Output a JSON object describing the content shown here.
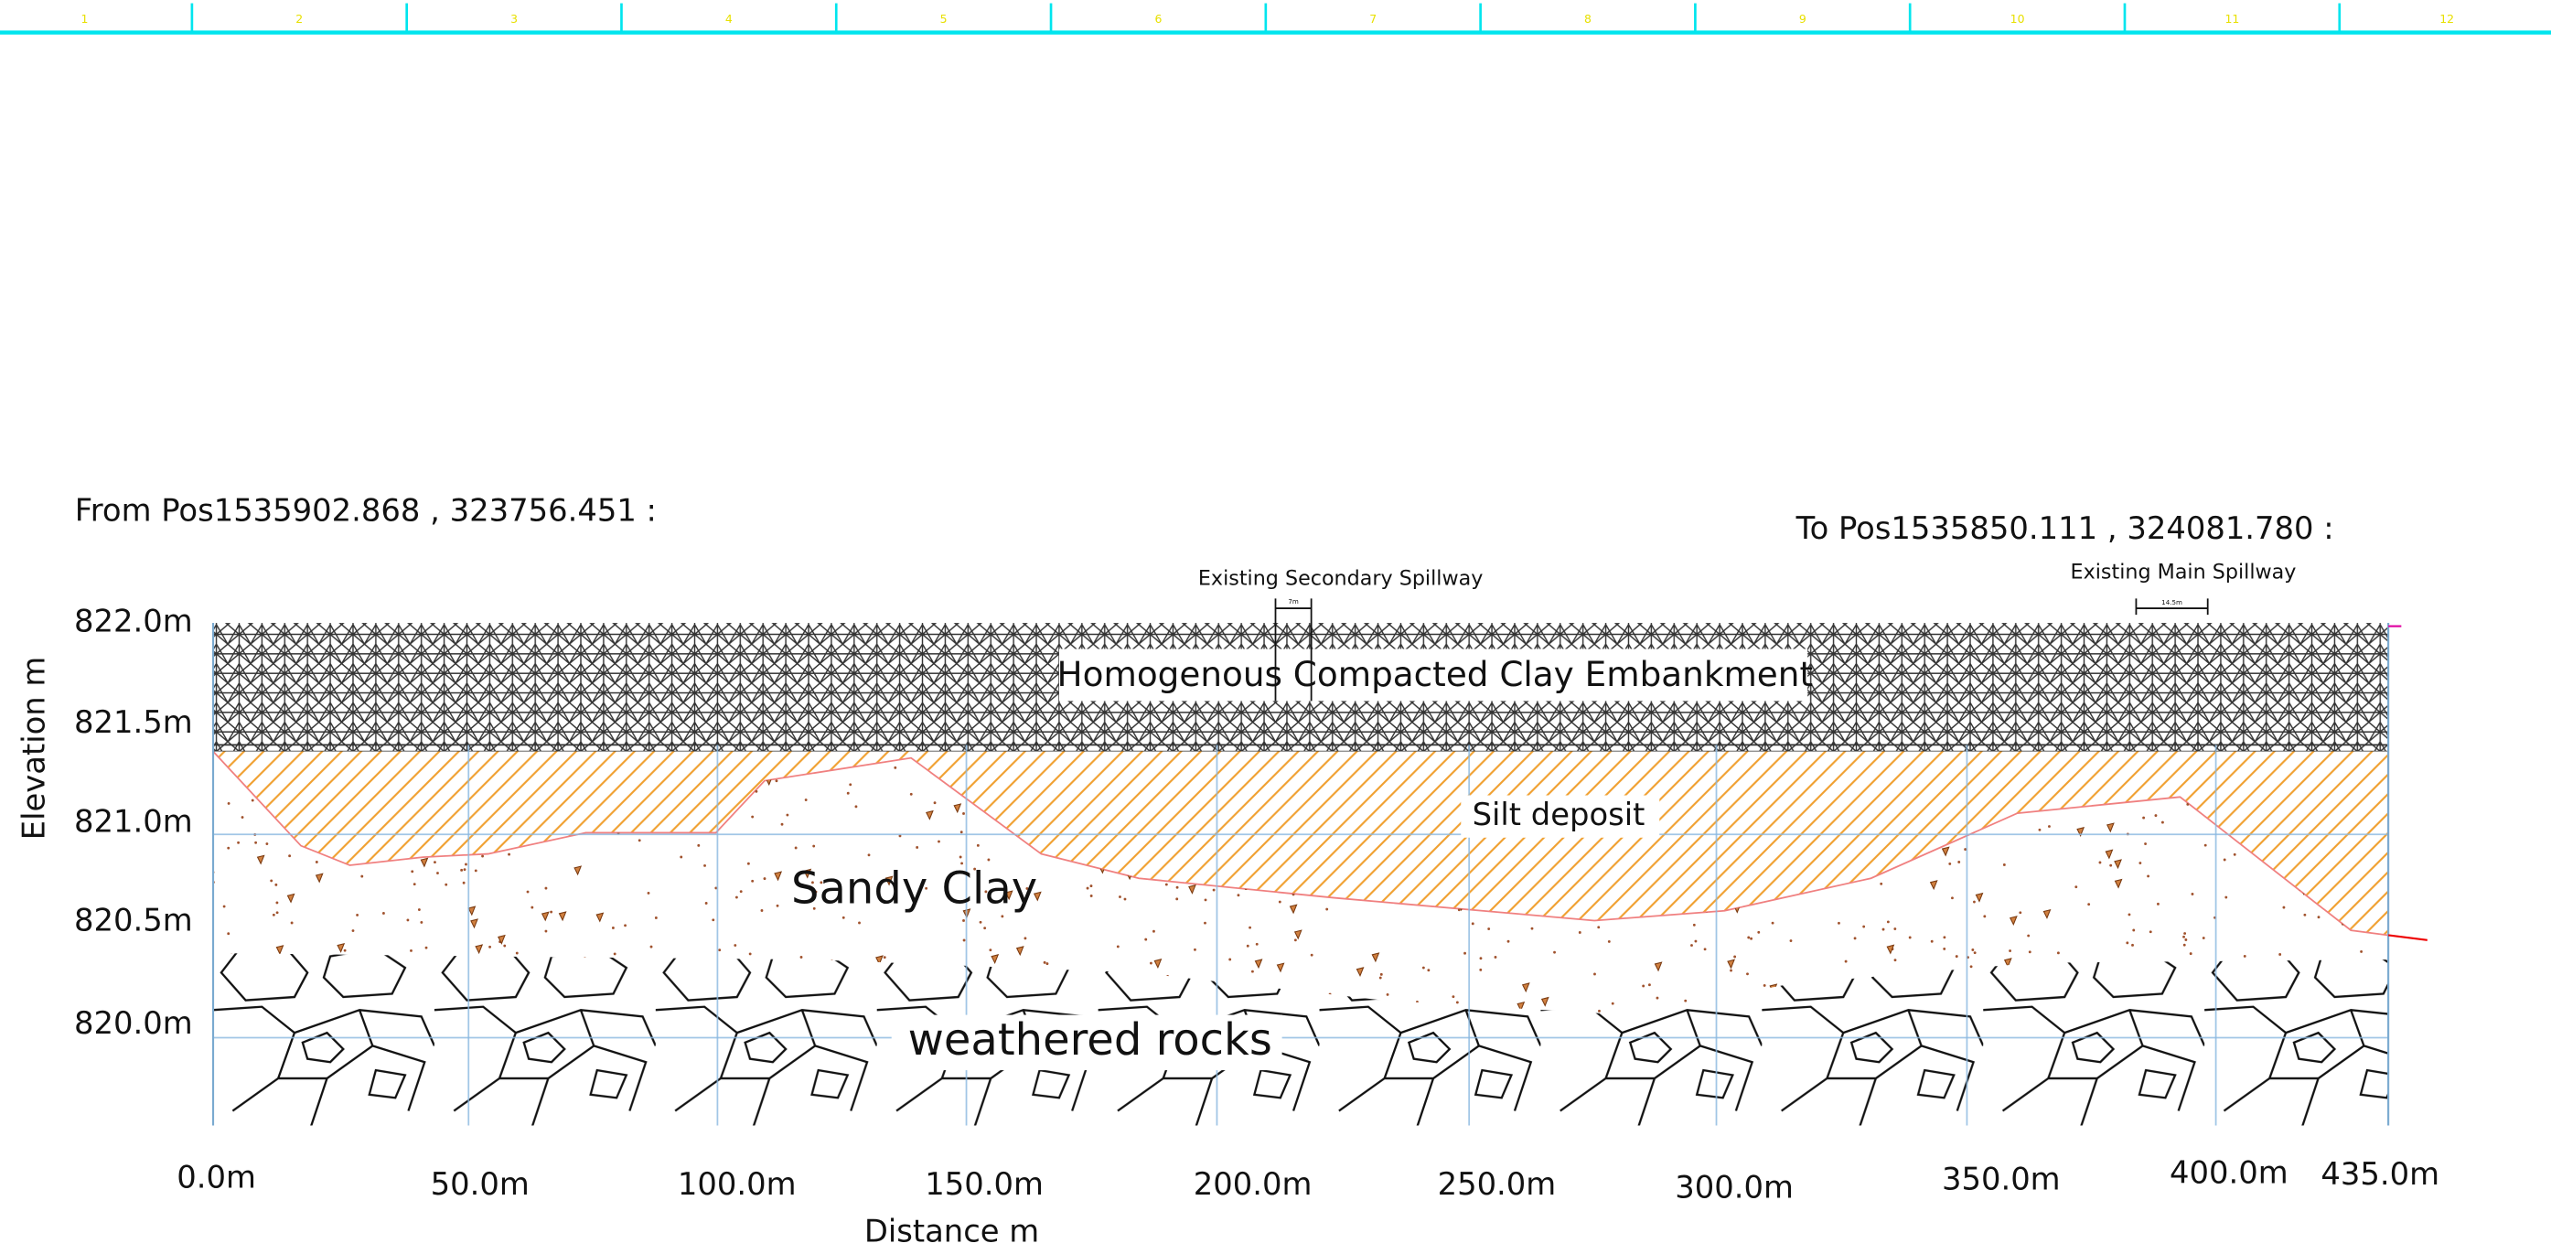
{
  "ruler": {
    "labels": [
      "1",
      "2",
      "3",
      "4",
      "5",
      "6",
      "7",
      "8",
      "9",
      "10",
      "11",
      "12"
    ]
  },
  "from_position": "From Pos1535902.868 , 323756.451 :",
  "to_position": "To Pos1535850.111 , 324081.780 :",
  "spillways": [
    {
      "label": "Existing Secondary Spillway",
      "width": "7m"
    },
    {
      "label": "Existing Main Spillway",
      "width": "14.5m"
    }
  ],
  "layers": [
    "Homogenous Compacted Clay Embankment",
    "Silt deposit",
    "Sandy Clay",
    "weathered rocks"
  ],
  "y_axis": {
    "title": "Elevation m",
    "labels": [
      "822.0m",
      "821.5m",
      "821.0m",
      "820.5m",
      "820.0m"
    ]
  },
  "x_axis": {
    "title": "Distance m",
    "labels": [
      "0.0m",
      "50.0m",
      "100.0m",
      "150.0m",
      "200.0m",
      "250.0m",
      "300.0m",
      "350.0m",
      "400.0m",
      "435.0m"
    ]
  }
}
